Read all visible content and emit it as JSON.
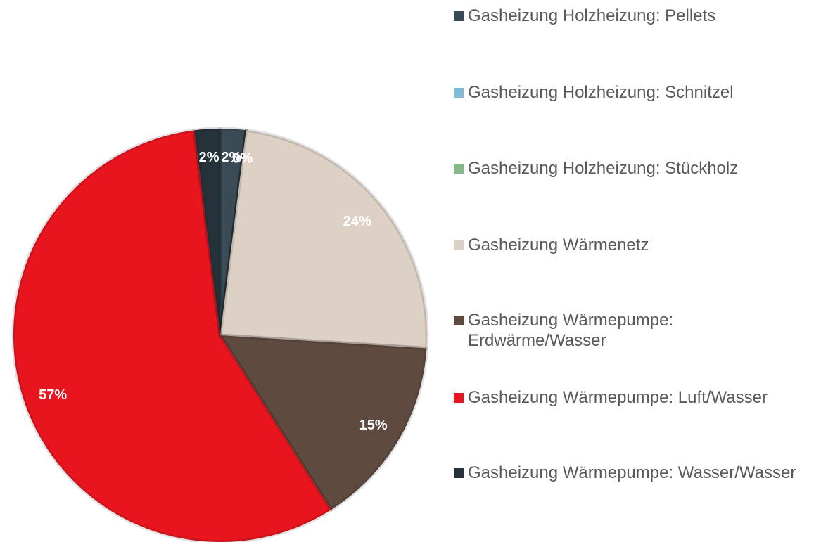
{
  "chart_data": {
    "type": "pie",
    "categories": [
      "Gasheizung Holzheizung: Pellets",
      "Gasheizung Holzheizung: Schnitzel",
      "Gasheizung Holzheizung: Stückholz",
      "Gasheizung Wärmenetz",
      "Gasheizung Wärmepumpe: Erdwärme/Wasser",
      "Gasheizung Wärmepumpe: Luft/Wasser",
      "Gasheizung Wärmepumpe: Wasser/Wasser"
    ],
    "values": [
      2,
      0,
      0,
      24,
      15,
      57,
      2
    ],
    "value_labels": [
      "2%",
      "0%",
      "0%",
      "24%",
      "15%",
      "57%",
      "2%"
    ],
    "colors": [
      "#3b4b56",
      "#7fbcd8",
      "#88b88a",
      "#ddd1c6",
      "#5f4a40",
      "#e8151f",
      "#26323a"
    ],
    "legend": "right"
  }
}
